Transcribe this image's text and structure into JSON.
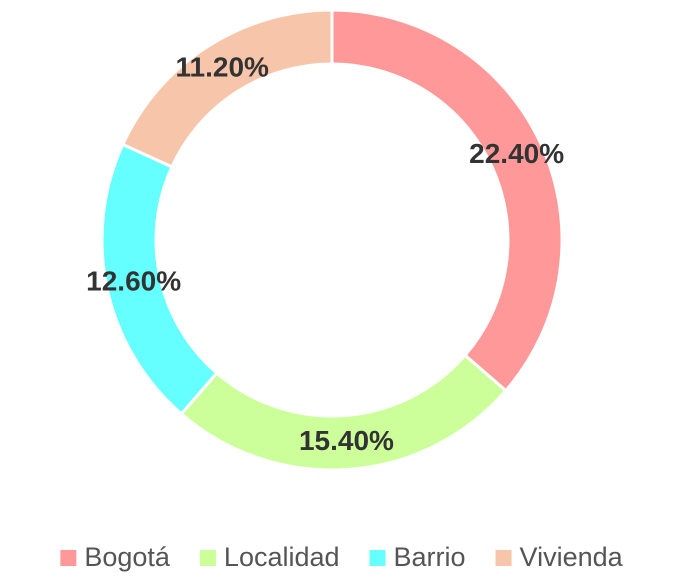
{
  "chart_data": {
    "type": "donut",
    "categories": [
      "Bogotá",
      "Localidad",
      "Barrio",
      "Vivienda"
    ],
    "values": [
      22.4,
      15.4,
      12.6,
      11.2
    ],
    "value_labels": [
      "22.40%",
      "15.40%",
      "12.60%",
      "11.20%"
    ],
    "colors": [
      "#ff9999",
      "#ccff99",
      "#66ffff",
      "#f7c5aa"
    ],
    "legend": "bottom"
  }
}
